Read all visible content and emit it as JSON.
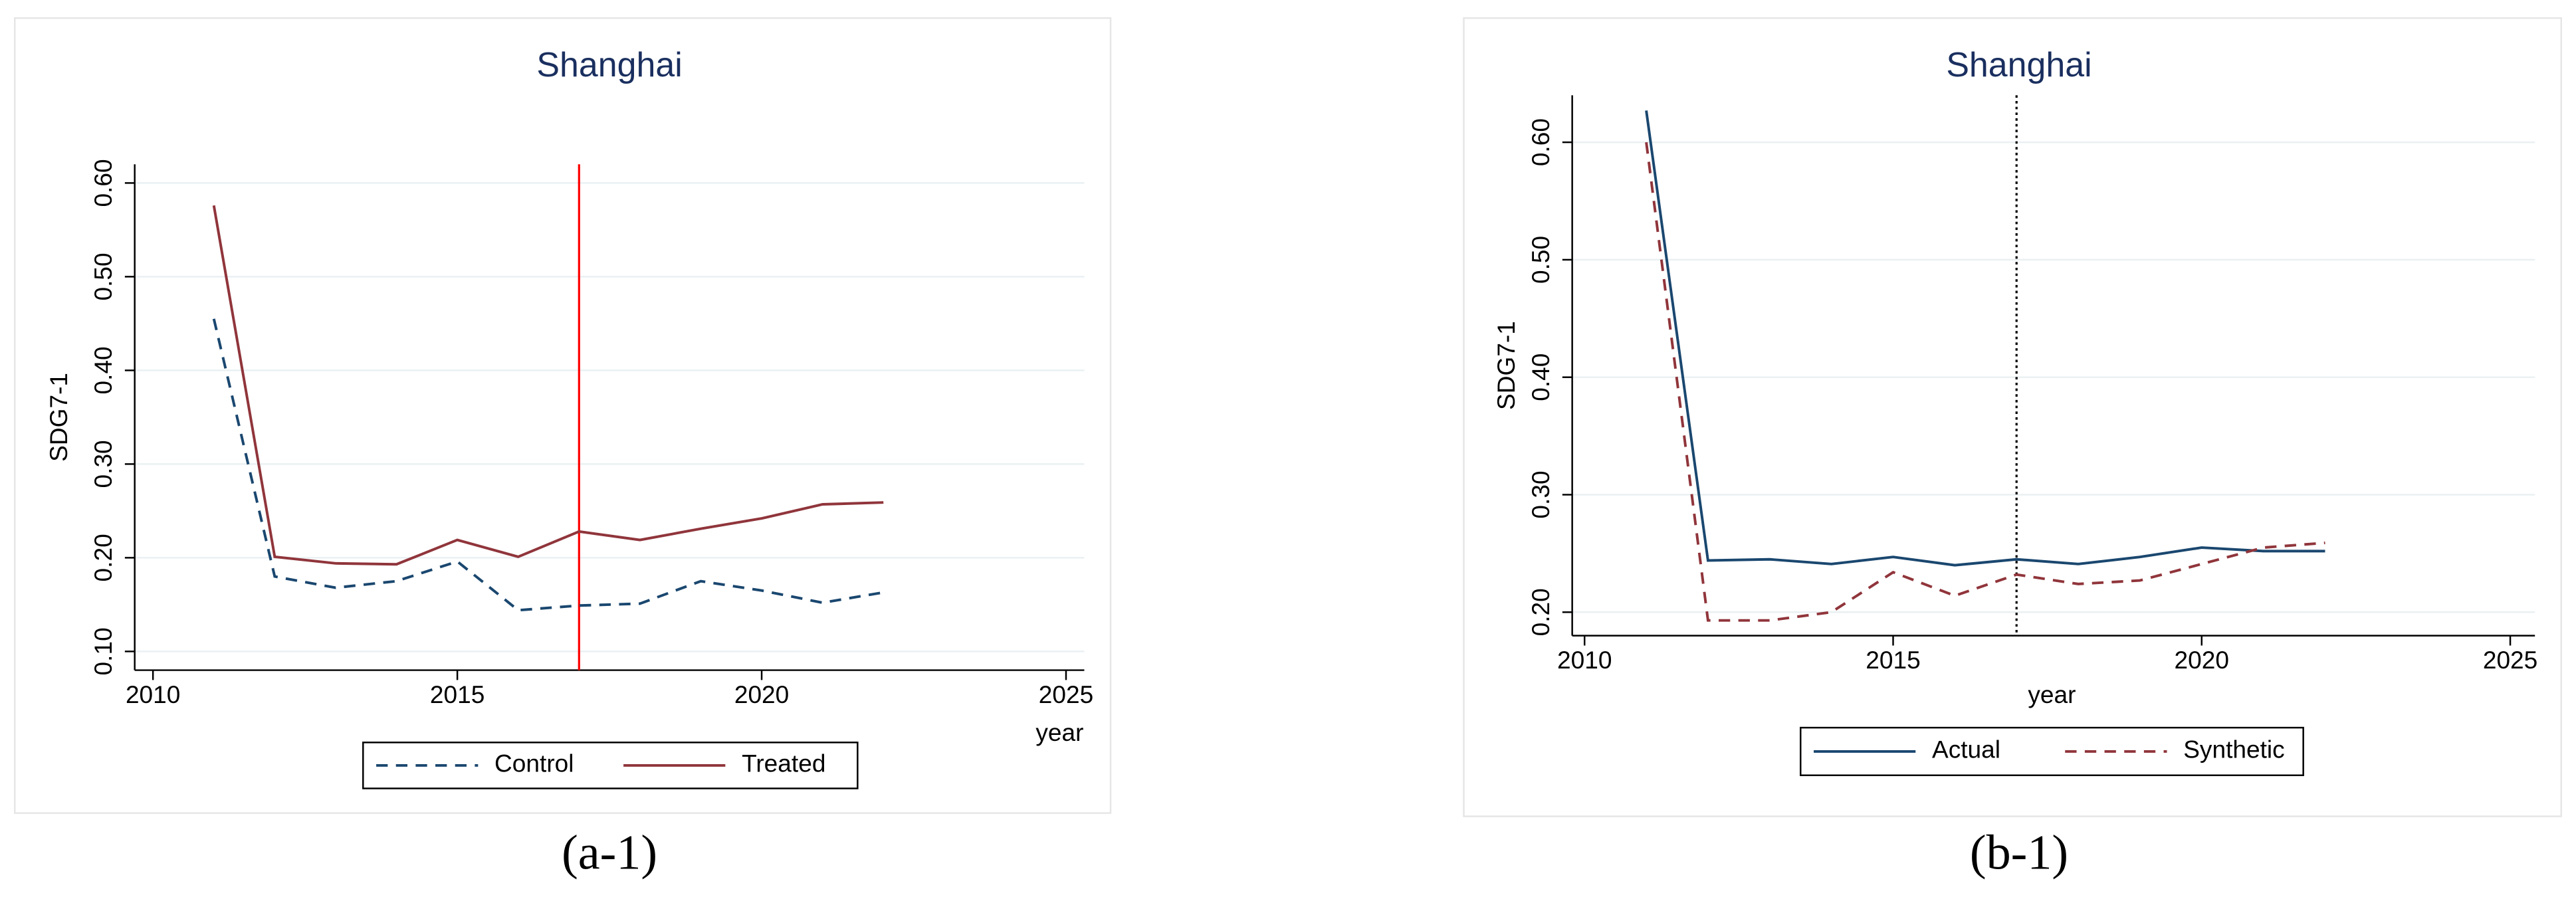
{
  "chart_data": [
    {
      "type": "line",
      "title": "Shanghai",
      "caption": "(a-1)",
      "x_label": "year",
      "y_label": "SDG7-1",
      "x": [
        2011,
        2012,
        2013,
        2014,
        2015,
        2016,
        2017,
        2018,
        2019,
        2020,
        2021,
        2022
      ],
      "series": [
        {
          "name": "Control",
          "color": "#1a476f",
          "dash": true,
          "values": [
            0.455,
            0.18,
            0.168,
            0.175,
            0.196,
            0.144,
            0.149,
            0.151,
            0.175,
            0.165,
            0.152,
            0.163
          ]
        },
        {
          "name": "Treated",
          "color": "#90353b",
          "dash": false,
          "values": [
            0.576,
            0.201,
            0.194,
            0.193,
            0.219,
            0.201,
            0.228,
            0.219,
            0.231,
            0.242,
            0.257,
            0.259
          ]
        }
      ],
      "xlim": [
        2009.7,
        2025.3
      ],
      "xticks": [
        2010,
        2015,
        2020,
        2025
      ],
      "ylim": [
        0.08,
        0.62
      ],
      "yticks": [
        {
          "value": 0.1,
          "label": "0.10"
        },
        {
          "value": 0.2,
          "label": "0.20"
        },
        {
          "value": 0.3,
          "label": "0.30"
        },
        {
          "value": 0.4,
          "label": "0.40"
        },
        {
          "value": 0.5,
          "label": "0.50"
        },
        {
          "value": 0.6,
          "label": "0.60"
        }
      ],
      "grid": true,
      "vline": 2017,
      "vline_color": "#ff0000",
      "vline_dotted": false
    },
    {
      "type": "line",
      "title": "Shanghai",
      "caption": "(b-1)",
      "x_label": "year",
      "y_label": "SDG7-1",
      "x": [
        2011,
        2012,
        2013,
        2014,
        2015,
        2016,
        2017,
        2018,
        2019,
        2020,
        2021,
        2022
      ],
      "series": [
        {
          "name": "Actual",
          "color": "#1a476f",
          "dash": false,
          "values": [
            0.627,
            0.244,
            0.245,
            0.241,
            0.247,
            0.24,
            0.245,
            0.241,
            0.247,
            0.255,
            0.252,
            0.252
          ]
        },
        {
          "name": "Synthetic",
          "color": "#90353b",
          "dash": true,
          "values": [
            0.6,
            0.193,
            0.193,
            0.2,
            0.234,
            0.214,
            0.232,
            0.224,
            0.227,
            0.241,
            0.255,
            0.259
          ]
        }
      ],
      "xlim": [
        2009.8,
        2025.4
      ],
      "xticks": [
        2010,
        2015,
        2020,
        2025
      ],
      "ylim": [
        0.18,
        0.64
      ],
      "yticks": [
        {
          "value": 0.2,
          "label": "0.20"
        },
        {
          "value": 0.3,
          "label": "0.30"
        },
        {
          "value": 0.4,
          "label": "0.40"
        },
        {
          "value": 0.5,
          "label": "0.50"
        },
        {
          "value": 0.6,
          "label": "0.60"
        }
      ],
      "grid": true,
      "vline": 2017,
      "vline_color": "#000000",
      "vline_dotted": true
    }
  ]
}
